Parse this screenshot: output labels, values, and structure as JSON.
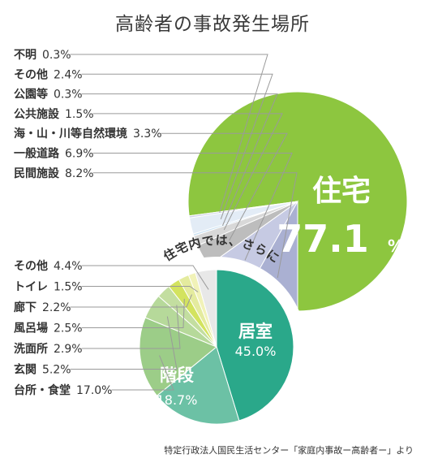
{
  "title": "高齢者の事故発生場所",
  "source": "特定行政法人国民生活センター「家庭内事故ー高齢者ー」より",
  "colors": {
    "main_accent": "#8dc63f",
    "sub_accent": "#2aa88a",
    "leader_line": "#9a9a9a"
  },
  "chart_data": [
    {
      "type": "pie",
      "title": "高齢者の事故発生場所",
      "slices": [
        {
          "label": "住宅",
          "value": 77.1,
          "display_value": "77.1",
          "unit": "%",
          "color": "#8dc63f"
        },
        {
          "label": "民間施設",
          "value": 8.2,
          "display_value": "8.2%",
          "color": "#aab0d2"
        },
        {
          "label": "一般道路",
          "value": 6.9,
          "display_value": "6.9%",
          "color": "#c6cae3"
        },
        {
          "label": "海・山・川等自然環境",
          "value": 3.3,
          "display_value": "3.3%",
          "color": "#bdbdbd"
        },
        {
          "label": "公共施設",
          "value": 1.5,
          "display_value": "1.5%",
          "color": "#d8d8d8"
        },
        {
          "label": "公園等",
          "value": 0.3,
          "display_value": "0.3%",
          "color": "#c9e1f3"
        },
        {
          "label": "その他",
          "value": 2.4,
          "display_value": "2.4%",
          "color": "#e3ecf6"
        },
        {
          "label": "不明",
          "value": 0.3,
          "display_value": "0.3%",
          "color": "#cfd3e8"
        }
      ]
    },
    {
      "type": "pie",
      "title": "住宅内では、さらに",
      "slices": [
        {
          "label": "居室",
          "value": 45.0,
          "display_value": "45.0%",
          "color": "#2aa88a"
        },
        {
          "label": "階段",
          "value": 18.7,
          "display_value": "18.7%",
          "color": "#6cc1a5"
        },
        {
          "label": "台所・食堂",
          "value": 17.0,
          "display_value": "17.0%",
          "color": "#9ccd88"
        },
        {
          "label": "玄関",
          "value": 5.2,
          "display_value": "5.2%",
          "color": "#b6d99a"
        },
        {
          "label": "洗面所",
          "value": 2.9,
          "display_value": "2.9%",
          "color": "#c3dea0"
        },
        {
          "label": "風呂場",
          "value": 2.5,
          "display_value": "2.5%",
          "color": "#d3e35f"
        },
        {
          "label": "廊下",
          "value": 2.2,
          "display_value": "2.2%",
          "color": "#e4eb9e"
        },
        {
          "label": "トイレ",
          "value": 1.5,
          "display_value": "1.5%",
          "color": "#f1f2b8"
        },
        {
          "label": "その他",
          "value": 4.4,
          "display_value": "4.4%",
          "color": "#e8e8e8"
        }
      ]
    }
  ]
}
